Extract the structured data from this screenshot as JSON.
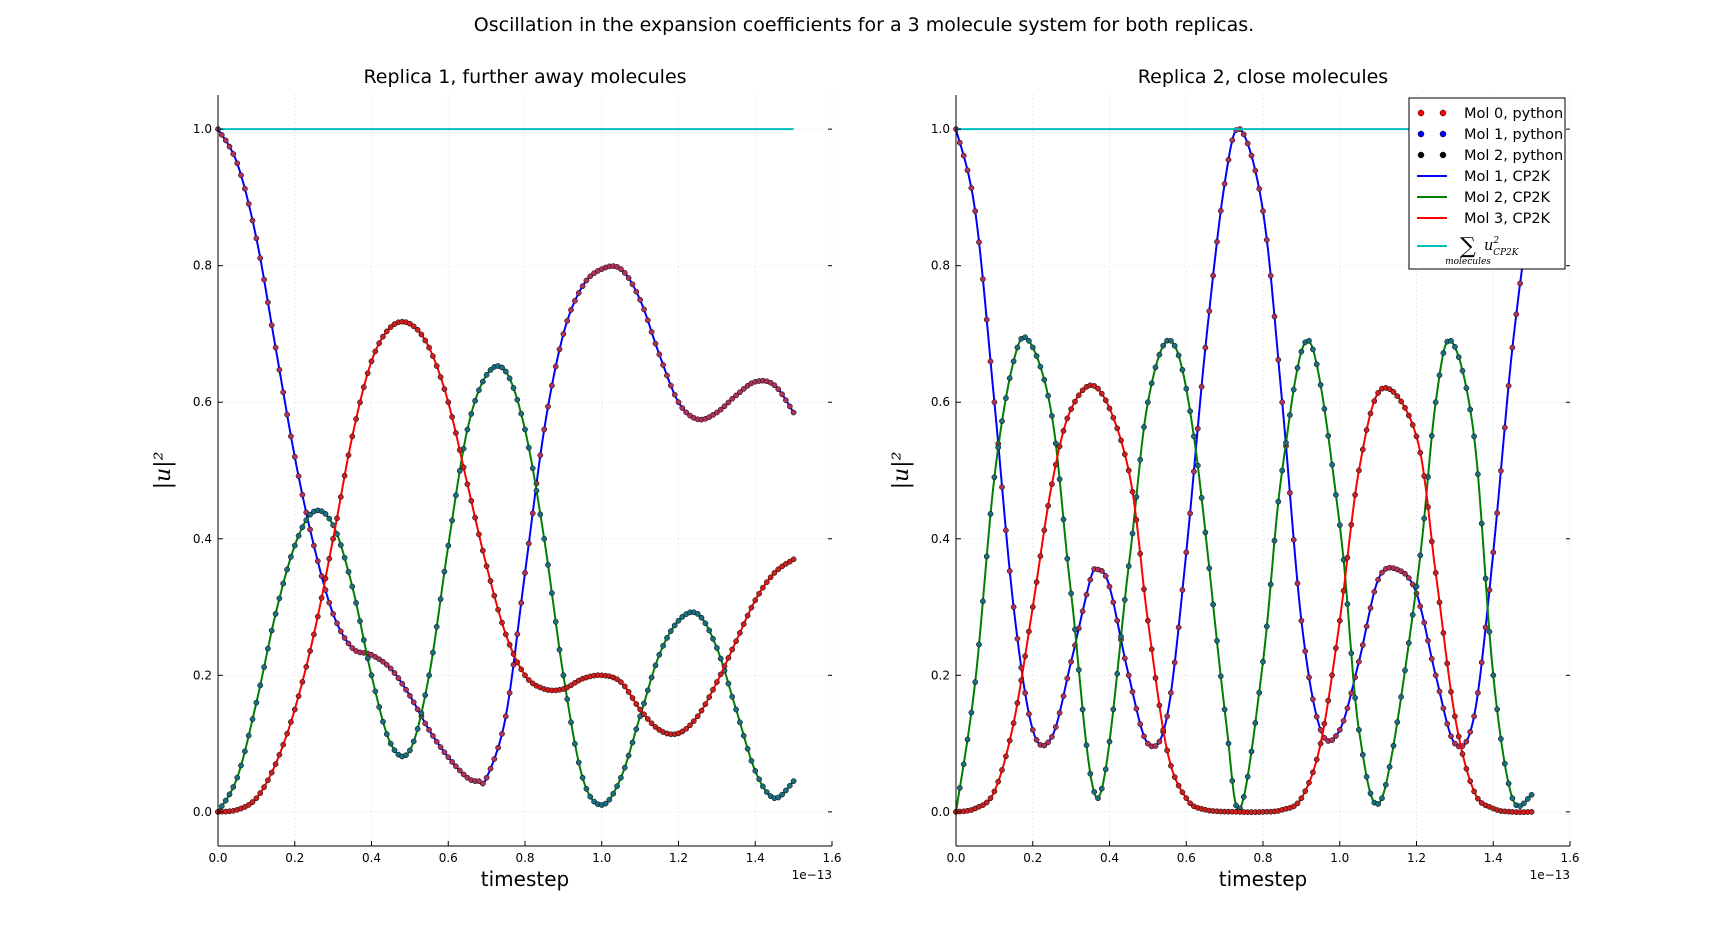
{
  "figure": {
    "suptitle": "Oscillation in the expansion coefficients for a 3 molecule system for both replicas."
  },
  "chart_data": [
    {
      "type": "line",
      "title": "Replica 1, further away molecules",
      "xlabel": "timestep",
      "ylabel": "|u|²",
      "x_offset_label": "1e−13",
      "xlim": [
        0.0,
        1.6
      ],
      "ylim": [
        -0.05,
        1.05
      ],
      "x_ticks": [
        "0.0",
        "0.2",
        "0.4",
        "0.6",
        "0.8",
        "1.0",
        "1.2",
        "1.4",
        "1.6"
      ],
      "y_ticks": [
        "0.0",
        "0.2",
        "0.4",
        "0.6",
        "0.8",
        "1.0"
      ],
      "grid": true,
      "x_units": "1e-13 timestep",
      "series": [
        {
          "name": "Mol 1, CP2K",
          "color": "#0000ff",
          "x": [
            0,
            0.05,
            0.1,
            0.15,
            0.2,
            0.25,
            0.3,
            0.35,
            0.4,
            0.45,
            0.5,
            0.55,
            0.6,
            0.65,
            0.68,
            0.7,
            0.75,
            0.8,
            0.85,
            0.9,
            0.95,
            1.0,
            1.05,
            1.1,
            1.15,
            1.2,
            1.25,
            1.3,
            1.35,
            1.4,
            1.45,
            1.5
          ],
          "values": [
            1.0,
            0.95,
            0.84,
            0.68,
            0.52,
            0.39,
            0.29,
            0.24,
            0.23,
            0.21,
            0.17,
            0.12,
            0.08,
            0.05,
            0.045,
            0.05,
            0.14,
            0.35,
            0.56,
            0.7,
            0.77,
            0.795,
            0.795,
            0.75,
            0.67,
            0.6,
            0.575,
            0.585,
            0.61,
            0.63,
            0.625,
            0.585
          ]
        },
        {
          "name": "Mol 2, CP2K",
          "color": "#008000",
          "x": [
            0,
            0.05,
            0.1,
            0.15,
            0.2,
            0.25,
            0.3,
            0.35,
            0.4,
            0.45,
            0.5,
            0.55,
            0.6,
            0.65,
            0.7,
            0.75,
            0.8,
            0.85,
            0.9,
            0.95,
            1.0,
            1.05,
            1.1,
            1.15,
            1.2,
            1.25,
            1.3,
            1.35,
            1.4,
            1.45,
            1.5
          ],
          "values": [
            0.0,
            0.05,
            0.16,
            0.29,
            0.39,
            0.44,
            0.42,
            0.33,
            0.2,
            0.1,
            0.09,
            0.2,
            0.39,
            0.56,
            0.64,
            0.645,
            0.56,
            0.4,
            0.2,
            0.05,
            0.01,
            0.05,
            0.14,
            0.23,
            0.28,
            0.29,
            0.24,
            0.15,
            0.06,
            0.02,
            0.045
          ]
        },
        {
          "name": "Mol 3, CP2K",
          "color": "#ff0000",
          "x": [
            0,
            0.05,
            0.1,
            0.15,
            0.2,
            0.25,
            0.3,
            0.35,
            0.4,
            0.45,
            0.5,
            0.55,
            0.6,
            0.65,
            0.7,
            0.75,
            0.8,
            0.85,
            0.9,
            0.95,
            1.0,
            1.05,
            1.1,
            1.15,
            1.2,
            1.25,
            1.3,
            1.35,
            1.4,
            1.45,
            1.5
          ],
          "values": [
            0.0,
            0.003,
            0.02,
            0.07,
            0.15,
            0.26,
            0.4,
            0.55,
            0.66,
            0.71,
            0.715,
            0.68,
            0.6,
            0.48,
            0.36,
            0.26,
            0.2,
            0.18,
            0.18,
            0.195,
            0.2,
            0.19,
            0.15,
            0.12,
            0.115,
            0.14,
            0.19,
            0.25,
            0.31,
            0.35,
            0.37
          ]
        },
        {
          "name": "∑ u²CP2K",
          "color": "#00bfbf",
          "x": [
            0,
            1.5
          ],
          "values": [
            1.0,
            1.0
          ]
        }
      ]
    },
    {
      "type": "line",
      "title": "Replica 2, close molecules",
      "xlabel": "timestep",
      "ylabel": "|u|²",
      "x_offset_label": "1e−13",
      "xlim": [
        0.0,
        1.6
      ],
      "ylim": [
        -0.05,
        1.05
      ],
      "x_ticks": [
        "0.0",
        "0.2",
        "0.4",
        "0.6",
        "0.8",
        "1.0",
        "1.2",
        "1.4",
        "1.6"
      ],
      "y_ticks": [
        "0.0",
        "0.2",
        "0.4",
        "0.6",
        "0.8",
        "1.0"
      ],
      "grid": true,
      "legend_position": "upper-right",
      "series": [
        {
          "name": "Mol 1, CP2K",
          "color": "#0000ff",
          "x": [
            0,
            0.05,
            0.1,
            0.15,
            0.2,
            0.25,
            0.3,
            0.35,
            0.37,
            0.4,
            0.45,
            0.5,
            0.55,
            0.6,
            0.65,
            0.7,
            0.74,
            0.8,
            0.85,
            0.9,
            0.95,
            1.0,
            1.05,
            1.1,
            1.15,
            1.2,
            1.25,
            1.3,
            1.35,
            1.4,
            1.45,
            1.5
          ],
          "values": [
            1.0,
            0.88,
            0.6,
            0.3,
            0.12,
            0.11,
            0.22,
            0.34,
            0.355,
            0.33,
            0.2,
            0.1,
            0.14,
            0.38,
            0.68,
            0.92,
            1.0,
            0.88,
            0.6,
            0.28,
            0.12,
            0.12,
            0.22,
            0.34,
            0.355,
            0.32,
            0.2,
            0.1,
            0.14,
            0.38,
            0.68,
            0.9
          ]
        },
        {
          "name": "Mol 2, CP2K",
          "color": "#008000",
          "x": [
            0,
            0.05,
            0.1,
            0.15,
            0.19,
            0.25,
            0.3,
            0.37,
            0.45,
            0.5,
            0.56,
            0.62,
            0.7,
            0.74,
            0.8,
            0.85,
            0.92,
            1.0,
            1.05,
            1.11,
            1.2,
            1.25,
            1.29,
            1.35,
            1.4,
            1.45,
            1.5
          ],
          "values": [
            0.0,
            0.19,
            0.49,
            0.66,
            0.69,
            0.58,
            0.32,
            0.02,
            0.36,
            0.6,
            0.69,
            0.55,
            0.15,
            0.005,
            0.22,
            0.5,
            0.69,
            0.42,
            0.12,
            0.02,
            0.33,
            0.6,
            0.69,
            0.55,
            0.2,
            0.02,
            0.025
          ]
        },
        {
          "name": "Mol 3, CP2K",
          "color": "#ff0000",
          "x": [
            0,
            0.05,
            0.1,
            0.15,
            0.2,
            0.25,
            0.3,
            0.37,
            0.45,
            0.5,
            0.55,
            0.6,
            0.65,
            0.74,
            0.8,
            0.85,
            0.9,
            0.95,
            1.0,
            1.05,
            1.11,
            1.2,
            1.25,
            1.3,
            1.35,
            1.4,
            1.45,
            1.5
          ],
          "values": [
            0.0,
            0.005,
            0.03,
            0.13,
            0.3,
            0.48,
            0.59,
            0.62,
            0.5,
            0.28,
            0.09,
            0.02,
            0.003,
            0.0,
            0.0,
            0.003,
            0.02,
            0.1,
            0.28,
            0.5,
            0.62,
            0.55,
            0.35,
            0.14,
            0.03,
            0.005,
            0.0,
            0.0
          ]
        },
        {
          "name": "∑ u²CP2K",
          "color": "#00bfbf",
          "x": [
            0,
            1.5
          ],
          "values": [
            1.0,
            1.0
          ]
        }
      ]
    }
  ],
  "legend": {
    "entries": [
      {
        "label": "Mol 0, python",
        "style": "dots",
        "color": "#ff0000"
      },
      {
        "label": "Mol 1, python",
        "style": "dots",
        "color": "#0000ff"
      },
      {
        "label": "Mol 2, python",
        "style": "dots",
        "color": "#000000"
      },
      {
        "label": "Mol 1, CP2K",
        "style": "line",
        "color": "#0000ff"
      },
      {
        "label": "Mol 2, CP2K",
        "style": "line",
        "color": "#008000"
      },
      {
        "label": "Mol 3, CP2K",
        "style": "line",
        "color": "#ff0000"
      }
    ],
    "sum_entry": {
      "sum_symbol": "∑",
      "sub": "molecules",
      "term": "u",
      "sup": "2",
      "term_sub": "CP2K",
      "color": "#00bfbf"
    }
  }
}
